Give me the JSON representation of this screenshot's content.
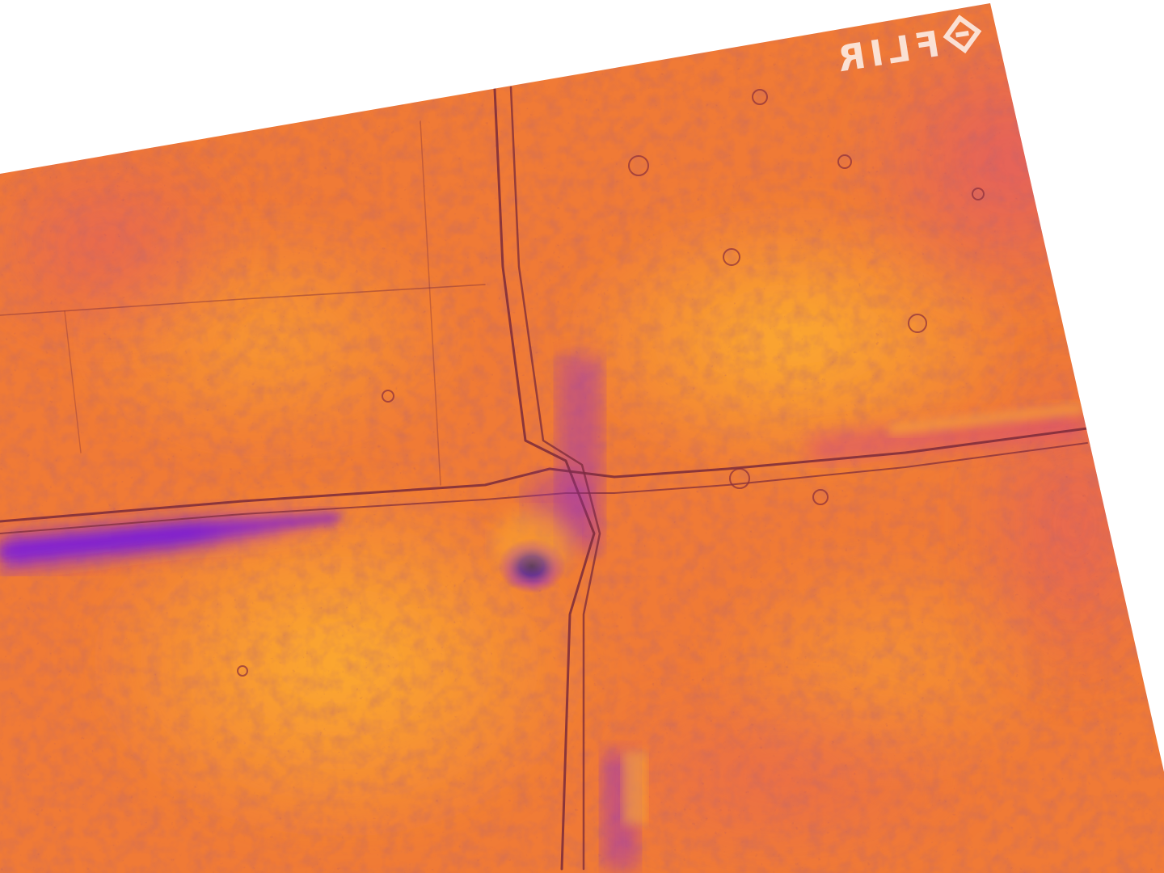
{
  "image": {
    "subject": "thermal-image",
    "palette": {
      "background": "#ffffff",
      "frame_base": "#f07a36",
      "warm": "#ff9a1f",
      "hot": "#ffb52e",
      "cool": "#e0586a",
      "cold": "#9a2fc0",
      "coldest": "#3a10b0",
      "crack": "#7a2a3a"
    },
    "logo": {
      "text": "FLIR",
      "icon": "flir-logo-icon",
      "color": "#ffffff",
      "mirrored": true
    }
  }
}
